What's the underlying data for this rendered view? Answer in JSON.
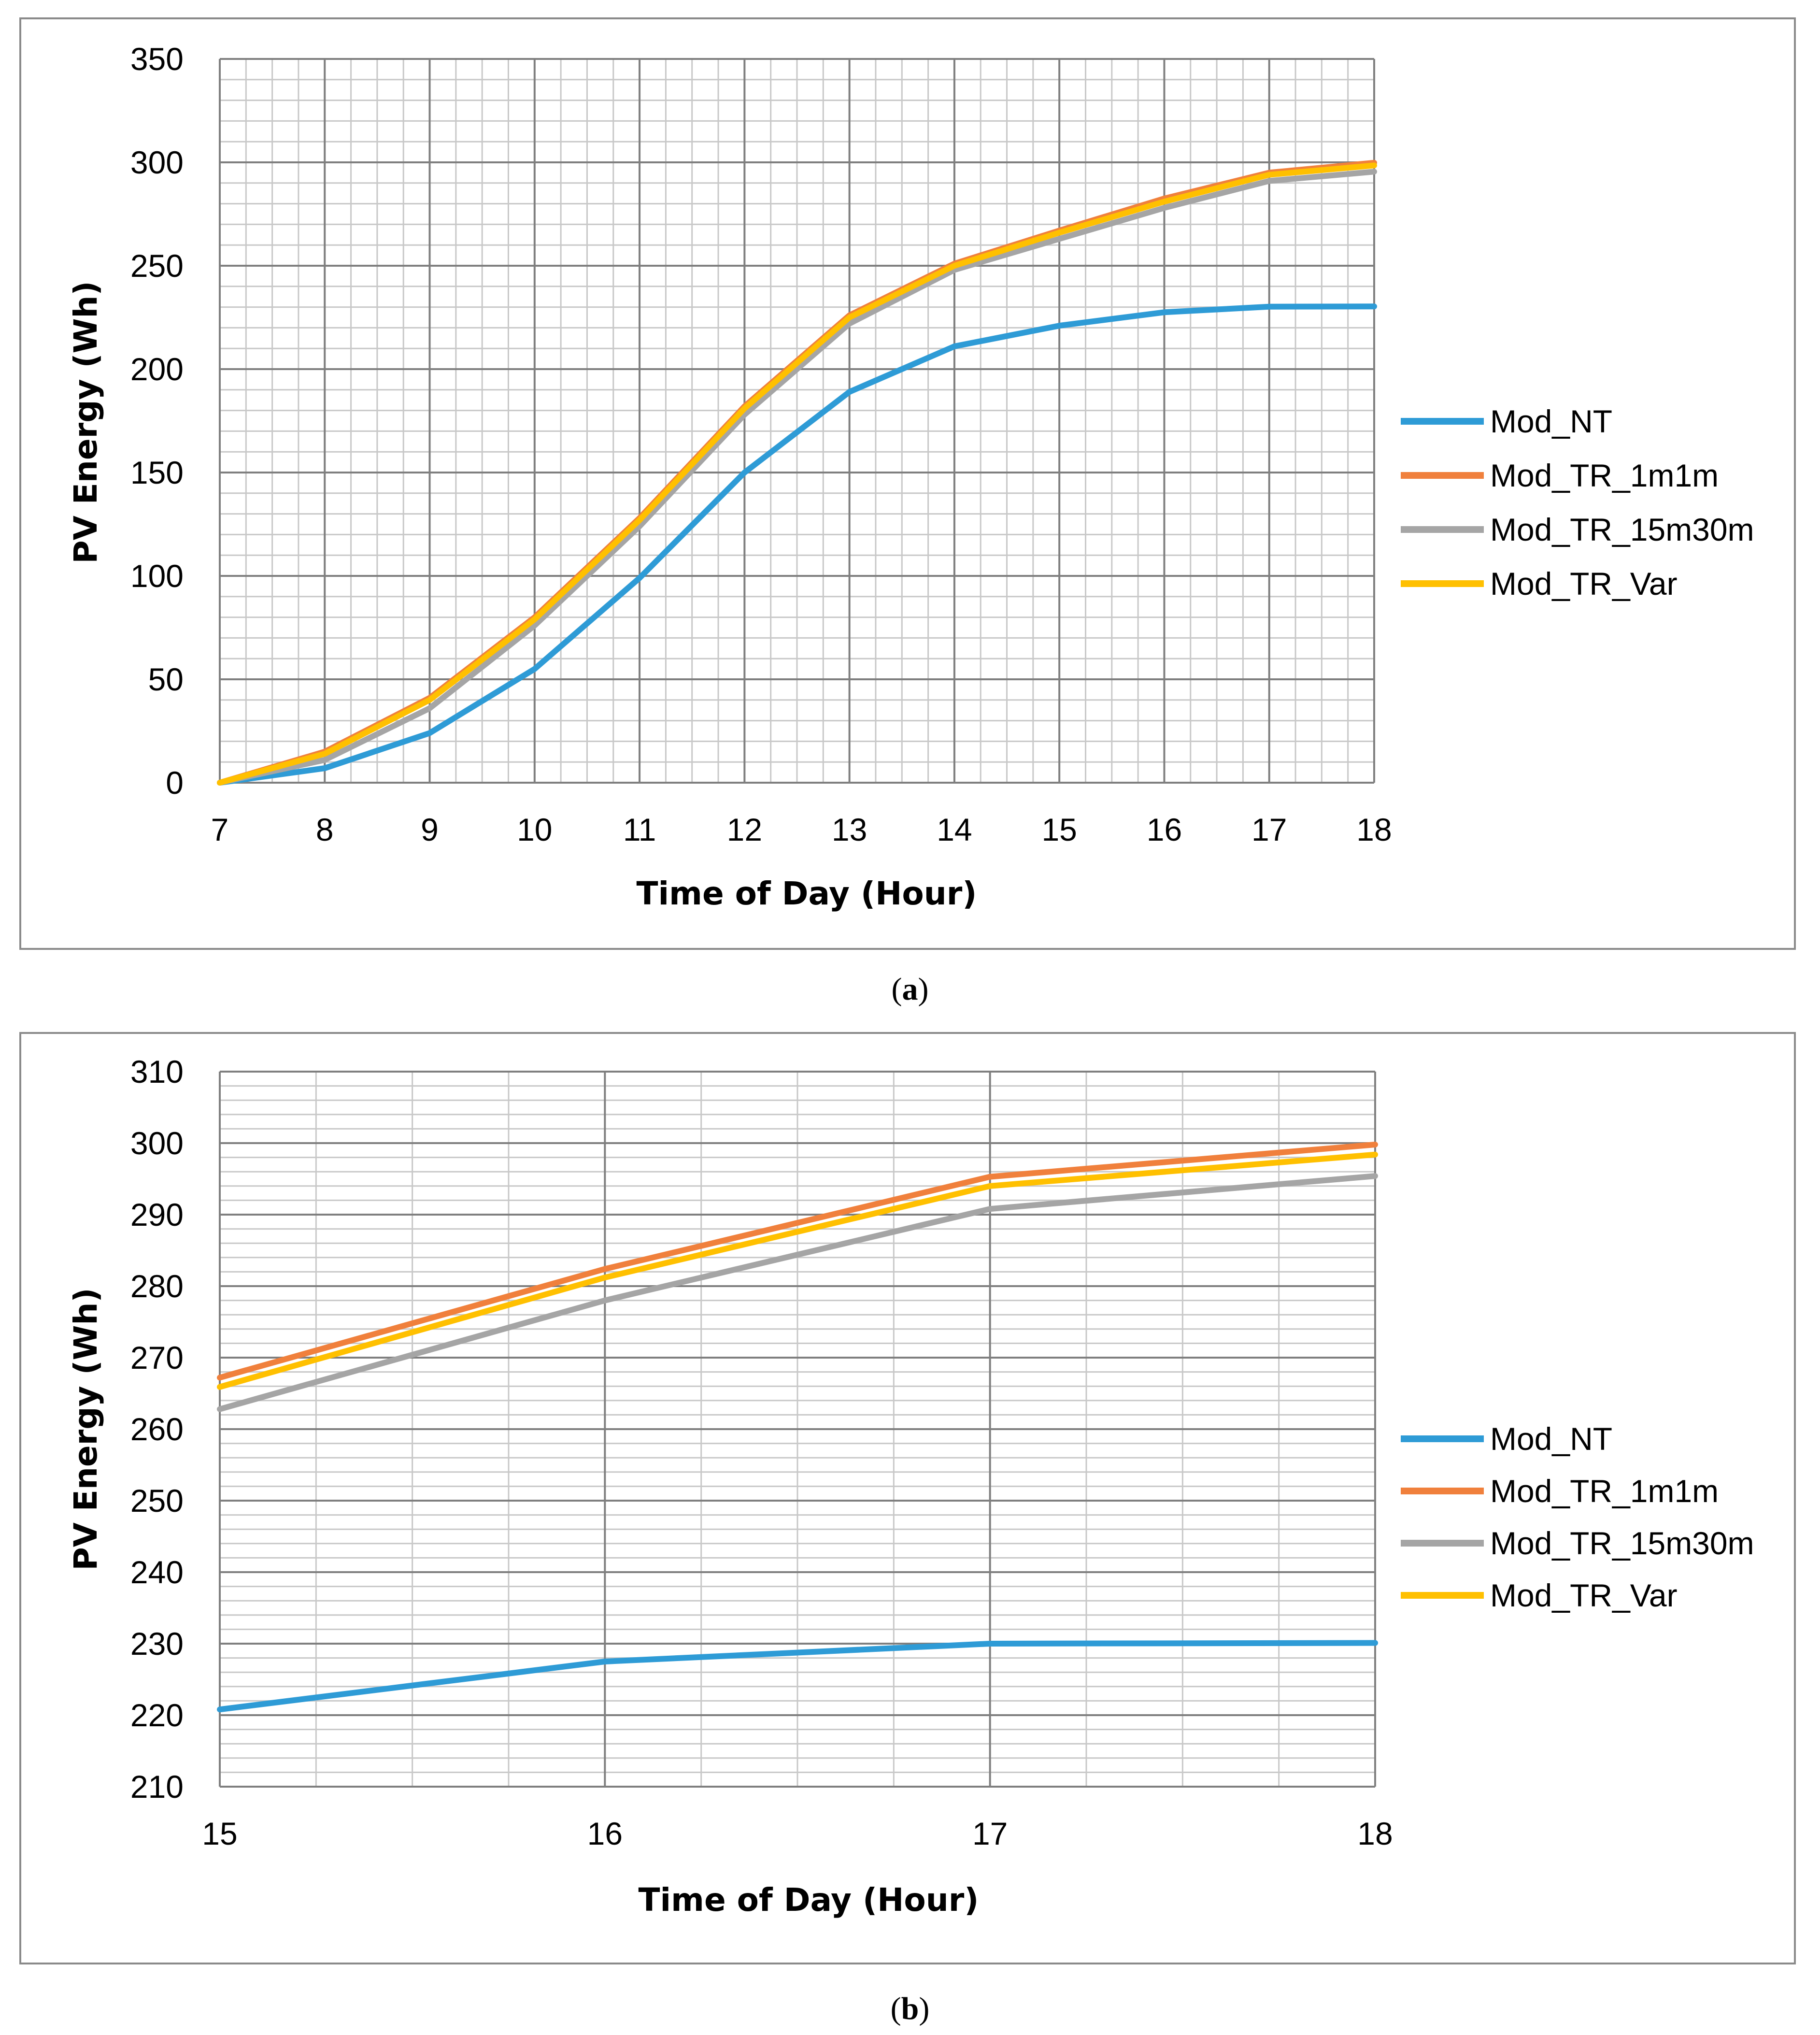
{
  "chart_data": [
    {
      "panel": "a",
      "type": "line",
      "caption_prefix": "(",
      "caption_letter": "a",
      "caption_suffix": ")",
      "xlabel": "Time of Day (Hour)",
      "ylabel": "PV Energy (Wh)",
      "xlim": [
        7,
        18
      ],
      "ylim": [
        0,
        350
      ],
      "x_major_ticks": [
        7,
        8,
        9,
        10,
        11,
        12,
        13,
        14,
        15,
        16,
        17,
        18
      ],
      "y_major_ticks": [
        0,
        50,
        100,
        150,
        200,
        250,
        300,
        350
      ],
      "x_minor_step": 0.25,
      "y_minor_step": 10,
      "legend_position": "right",
      "x": [
        7,
        8,
        9,
        10,
        11,
        12,
        13,
        14,
        15,
        16,
        17,
        18
      ],
      "series": [
        {
          "name": "Mod_NT",
          "color": "#2E9BD6",
          "values": [
            0,
            7,
            24,
            55,
            99,
            150,
            189,
            211,
            221,
            227.5,
            230.2,
            230.3
          ]
        },
        {
          "name": "Mod_TR_1m1m",
          "color": "#F0803C",
          "values": [
            0,
            15,
            41,
            80,
            128,
            182,
            226,
            251,
            267,
            282.5,
            295,
            299.8
          ]
        },
        {
          "name": "Mod_TR_15m30m",
          "color": "#A5A5A5",
          "values": [
            0,
            11,
            36,
            76,
            124,
            178,
            222,
            248,
            263,
            278,
            291,
            295.5
          ]
        },
        {
          "name": "Mod_TR_Var",
          "color": "#FFC000",
          "values": [
            0,
            14,
            40,
            79,
            127,
            181,
            225,
            250,
            266,
            281,
            294,
            298.5
          ]
        }
      ]
    },
    {
      "panel": "b",
      "type": "line",
      "caption_prefix": "(",
      "caption_letter": "b",
      "caption_suffix": ")",
      "xlabel": "Time of Day (Hour)",
      "ylabel": "PV Energy (Wh)",
      "xlim": [
        15,
        18
      ],
      "ylim": [
        210,
        310
      ],
      "x_major_ticks": [
        15,
        16,
        17,
        18
      ],
      "y_major_ticks": [
        210,
        220,
        230,
        240,
        250,
        260,
        270,
        280,
        290,
        300,
        310
      ],
      "x_minor_step": 0.25,
      "y_minor_step": 2,
      "legend_position": "right",
      "x": [
        15,
        16,
        17,
        18
      ],
      "series": [
        {
          "name": "Mod_NT",
          "color": "#2E9BD6",
          "values": [
            220.8,
            227.5,
            230.0,
            230.1
          ]
        },
        {
          "name": "Mod_TR_1m1m",
          "color": "#F0803C",
          "values": [
            267.2,
            282.4,
            295.3,
            299.8
          ]
        },
        {
          "name": "Mod_TR_15m30m",
          "color": "#A5A5A5",
          "values": [
            262.8,
            278.0,
            290.8,
            295.4
          ]
        },
        {
          "name": "Mod_TR_Var",
          "color": "#FFC000",
          "values": [
            265.9,
            281.2,
            294.0,
            298.4
          ]
        }
      ]
    }
  ]
}
